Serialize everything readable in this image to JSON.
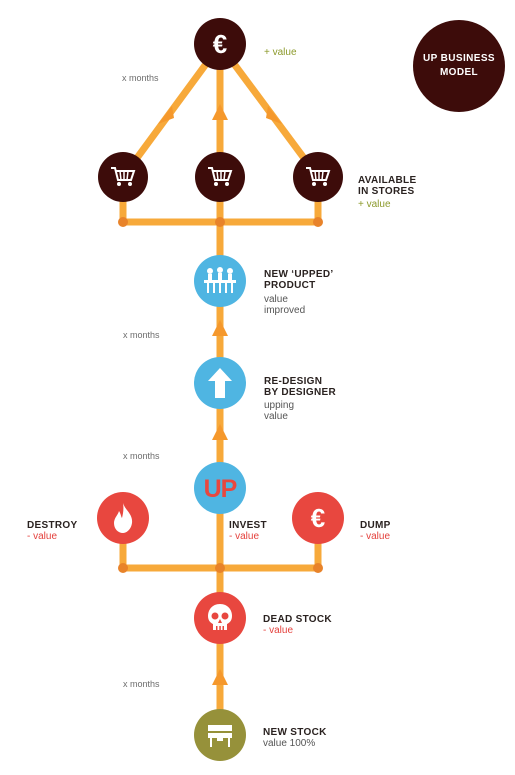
{
  "title": "UP BUSINESS\nMODEL",
  "interval_label": "x months",
  "colors": {
    "line": "#f7a93a",
    "dark": "#3d0c0a",
    "blue": "#4fb5e2",
    "red": "#e8473f",
    "olive": "#96913a",
    "plus": "#8c9a2c",
    "minus": "#e4403c"
  },
  "nodes": {
    "euro_top": {
      "icon": "euro-icon",
      "value_note": "+ value"
    },
    "stores": {
      "icon": "shopping-cart-icon",
      "name": "AVAILABLE\nIN STORES",
      "value_note": "+ value"
    },
    "new_product": {
      "icon": "people-icon",
      "name": "NEW ‘UPPED’\nPRODUCT",
      "value_note": "value\nimproved"
    },
    "redesign": {
      "icon": "up-arrow-icon",
      "name": "RE-DESIGN\nBY DESIGNER",
      "value_note": "upping\nvalue"
    },
    "invest": {
      "icon": "up-logo-icon",
      "name": "INVEST",
      "value_note": "- value"
    },
    "destroy": {
      "icon": "flame-icon",
      "name": "DESTROY",
      "value_note": "- value"
    },
    "dump": {
      "icon": "euro-icon",
      "name": "DUMP",
      "value_note": "- value"
    },
    "dead_stock": {
      "icon": "skull-icon",
      "name": "DEAD STOCK",
      "value_note": "- value"
    },
    "new_stock": {
      "icon": "piano-icon",
      "name": "NEW STOCK",
      "value_note": "value 100%"
    }
  }
}
